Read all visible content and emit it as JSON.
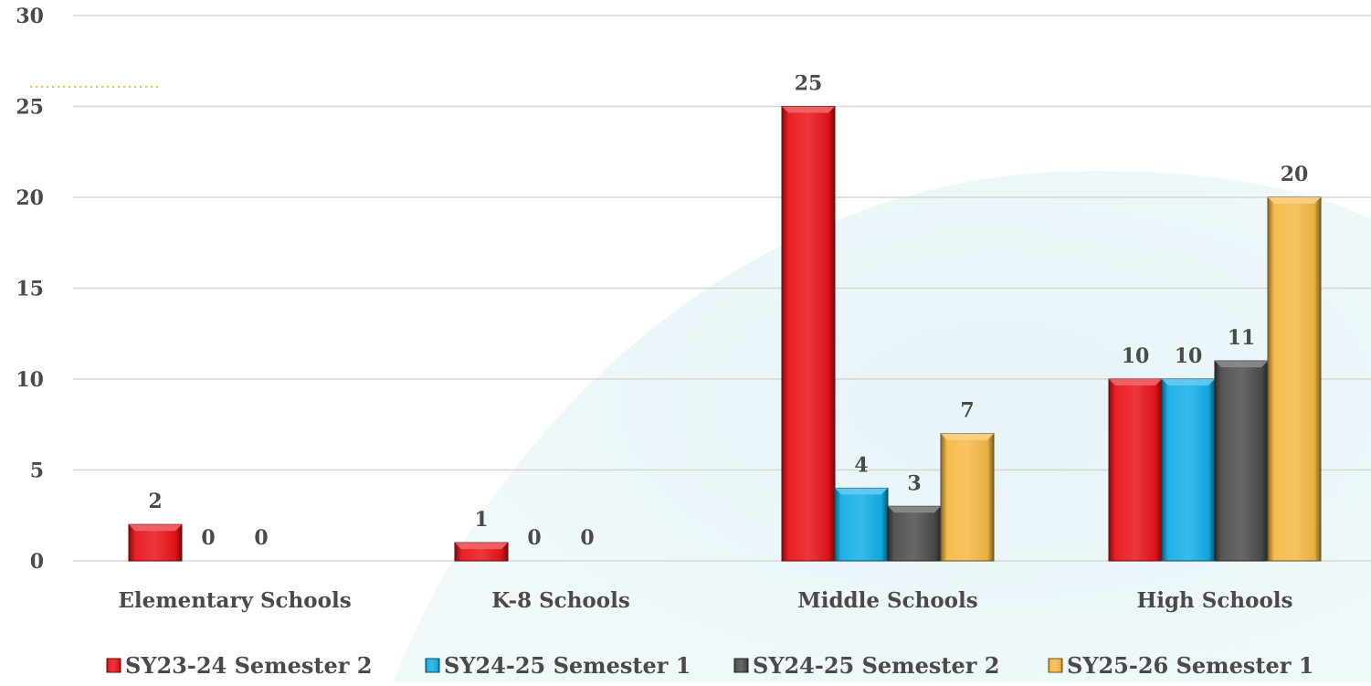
{
  "chart_data": {
    "type": "bar",
    "title": "",
    "xlabel": "",
    "ylabel": "",
    "categories": [
      "Elementary Schools",
      "K-8 Schools",
      "Middle Schools",
      "High Schools"
    ],
    "series": [
      {
        "name": "SY23-24 Semester 2",
        "values": [
          2,
          1,
          25,
          10
        ],
        "color": "#e8141a"
      },
      {
        "name": "SY24-25 Semester 1",
        "values": [
          0,
          0,
          4,
          10
        ],
        "color": "#14aee6"
      },
      {
        "name": "SY24-25 Semester 2",
        "values": [
          null,
          null,
          3,
          11
        ],
        "color": "#4d4d4d"
      },
      {
        "name": "SY25-26 Semester 1",
        "values": [
          null,
          null,
          7,
          20
        ],
        "color": "#f5b945"
      }
    ],
    "data_labels": [
      [
        "2",
        "0",
        "0",
        ""
      ],
      [
        "1",
        "0",
        "0",
        ""
      ],
      [
        "25",
        "4",
        "3",
        "7"
      ],
      [
        "10",
        "10",
        "11",
        "20"
      ]
    ],
    "y_ticks": [
      "0",
      "5",
      "10",
      "15",
      "20",
      "25",
      "30"
    ],
    "ylim": [
      0,
      30
    ],
    "grid": true,
    "legend_position": "bottom"
  }
}
